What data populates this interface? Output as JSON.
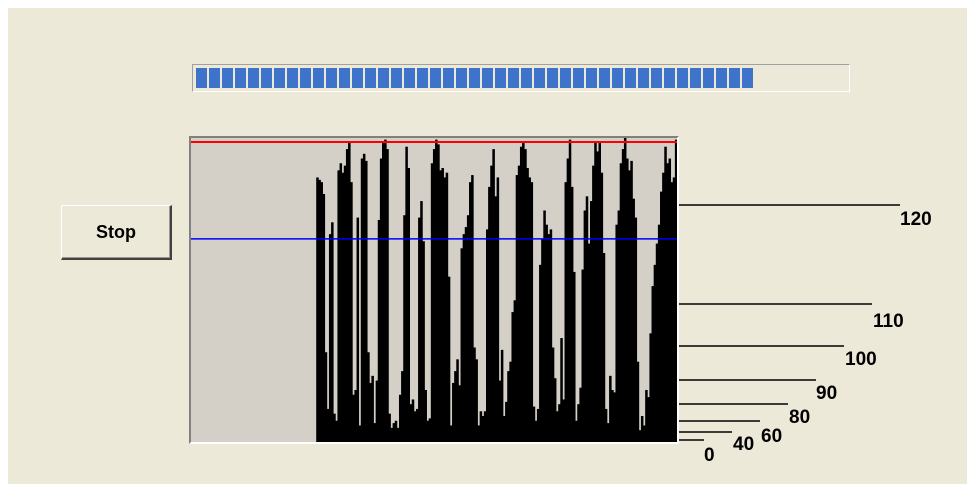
{
  "progress": {
    "fraction": 0.85,
    "color": "#3d73c9"
  },
  "controls": {
    "stop_label": "Stop"
  },
  "chart_data": {
    "type": "bar",
    "ylim": [
      0,
      127
    ],
    "threshold_high": {
      "value": 127,
      "color": "#ff0000"
    },
    "threshold_low": {
      "value": 86,
      "color": "#0000ff"
    },
    "bar_color": "#000000",
    "background": "#d4d0c8",
    "values": [
      0,
      0,
      0,
      0,
      0,
      0,
      0,
      0,
      0,
      0,
      0,
      0,
      0,
      0,
      0,
      0,
      0,
      0,
      0,
      0,
      0,
      0,
      0,
      0,
      0,
      0,
      0,
      0,
      0,
      0,
      0,
      0,
      0,
      0,
      0,
      0,
      0,
      0,
      0,
      0,
      0,
      0,
      0,
      0,
      0,
      0,
      0,
      0,
      0,
      0,
      0,
      0,
      0,
      0,
      0,
      0,
      0,
      0,
      0,
      112,
      111,
      110,
      105,
      38,
      14,
      88,
      93,
      12,
      9,
      115,
      118,
      114,
      117,
      124,
      127,
      110,
      20,
      22,
      95,
      7,
      120,
      122,
      119,
      38,
      25,
      28,
      8,
      26,
      94,
      120,
      127,
      128,
      124,
      12,
      6,
      8,
      9,
      6,
      20,
      30,
      96,
      125,
      116,
      16,
      18,
      13,
      14,
      95,
      102,
      85,
      22,
      9,
      10,
      118,
      124,
      128,
      126,
      115,
      116,
      112,
      114,
      70,
      7,
      25,
      30,
      35,
      24,
      82,
      88,
      91,
      96,
      110,
      113,
      40,
      35,
      7,
      13,
      11,
      13,
      90,
      108,
      117,
      124,
      104,
      112,
      26,
      39,
      11,
      17,
      30,
      34,
      55,
      60,
      113,
      117,
      125,
      127,
      124,
      116,
      112,
      110,
      15,
      9,
      14,
      75,
      86,
      98,
      92,
      88,
      90,
      40,
      27,
      13,
      16,
      44,
      18,
      110,
      120,
      128,
      108,
      72,
      9,
      16,
      23,
      73,
      98,
      104,
      84,
      102,
      117,
      127,
      123,
      127,
      114,
      80,
      14,
      8,
      28,
      22,
      21,
      92,
      98,
      118,
      124,
      129,
      120,
      115,
      119,
      103,
      95,
      34,
      5,
      11,
      7,
      22,
      19,
      46,
      66,
      75,
      84,
      92,
      106,
      114,
      125,
      118,
      120,
      110,
      112,
      128
    ]
  },
  "scale": {
    "labels": [
      "120",
      "110",
      "100",
      "90",
      "80",
      "60",
      "40",
      "0"
    ]
  }
}
